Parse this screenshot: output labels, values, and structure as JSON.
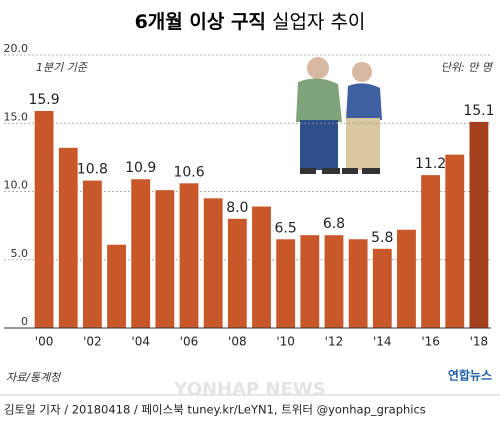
{
  "chart_data": {
    "type": "bar",
    "title_bold": "6개월 이상 구직",
    "title_rest": "실업자 추이",
    "note_left": "1분기 기준",
    "note_right": "단위: 만 명",
    "source": "자료/통계청",
    "credit": "김토일 기자 / 20180418 / 페이스북 tuney.kr/LeYN1, 트위터 @yonhap_graphics",
    "logo": "연합뉴스",
    "watermark": "YONHAP NEWS",
    "categories": [
      "'00",
      null,
      "'02",
      null,
      "'04",
      null,
      "'06",
      null,
      "'08",
      null,
      "'10",
      null,
      "'12",
      null,
      "'14",
      null,
      "'16",
      null,
      "'18"
    ],
    "values": [
      15.9,
      13.2,
      10.8,
      6.1,
      10.9,
      10.1,
      10.6,
      9.5,
      8.0,
      8.9,
      6.5,
      6.8,
      6.8,
      6.5,
      5.8,
      7.2,
      11.2,
      12.7,
      15.1
    ],
    "value_labels": [
      "15.9",
      null,
      "10.8",
      null,
      "10.9",
      null,
      "10.6",
      null,
      "8.0",
      null,
      "6.5",
      null,
      "6.8",
      null,
      "5.8",
      null,
      "11.2",
      null,
      "15.1"
    ],
    "color": "#c8582a",
    "last_color": "#a33f1a",
    "ylim": [
      0,
      20
    ],
    "yticks": [
      0,
      {
        "value": 5,
        "label": "5.0"
      },
      {
        "value": 10,
        "label": "10.0"
      },
      {
        "value": 15,
        "label": "15.0"
      },
      {
        "value": 20,
        "label": "20.0"
      }
    ],
    "grid": true
  }
}
